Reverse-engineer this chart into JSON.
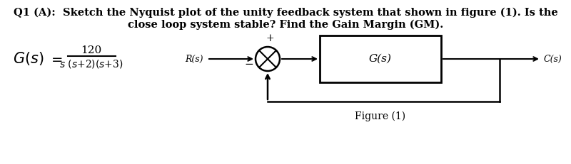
{
  "title_line1": "Q1 (A):  Sketch the Nyquist plot of the unity feedback system that shown in figure (1). Is the",
  "title_line2": "close loop system stable? Find the Gain Margin (GM).",
  "label_R": "R(s)",
  "label_G": "G(s)",
  "label_C": "C(s)",
  "label_figure": "Figure (1)",
  "bg_color": "#ffffff",
  "text_color": "#000000",
  "title_fontsize": 10.5,
  "formula_fontsize": 13,
  "block_fontsize": 10
}
